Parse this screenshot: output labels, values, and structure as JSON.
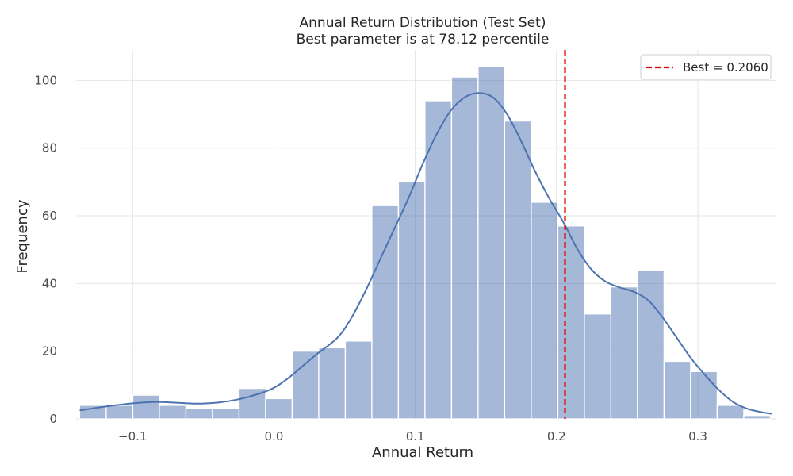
{
  "chart_data": {
    "type": "bar",
    "title": "Annual Return Distribution (Test Set)",
    "subtitle": "Best parameter is at 78.12 percentile",
    "xlabel": "Annual Return",
    "ylabel": "Frequency",
    "xlim": [
      -0.14,
      0.355
    ],
    "ylim": [
      0,
      109
    ],
    "x_ticks": [
      {
        "value": -0.1,
        "label": "−0.1"
      },
      {
        "value": 0.0,
        "label": "0.0"
      },
      {
        "value": 0.1,
        "label": "0.1"
      },
      {
        "value": 0.2,
        "label": "0.2"
      },
      {
        "value": 0.3,
        "label": "0.3"
      }
    ],
    "y_ticks": [
      {
        "value": 0,
        "label": "0"
      },
      {
        "value": 20,
        "label": "20"
      },
      {
        "value": 40,
        "label": "40"
      },
      {
        "value": 60,
        "label": "60"
      },
      {
        "value": 80,
        "label": "80"
      },
      {
        "value": 100,
        "label": "100"
      }
    ],
    "bin_start": -0.1375,
    "bin_width": 0.0188,
    "counts": [
      4,
      4,
      7,
      4,
      3,
      3,
      9,
      6,
      20,
      21,
      23,
      63,
      70,
      94,
      101,
      104,
      88,
      64,
      57,
      31,
      39,
      44,
      17,
      14,
      4,
      1
    ],
    "kde": [
      [
        -0.1375,
        2.5
      ],
      [
        -0.12,
        3.6
      ],
      [
        -0.1,
        4.6
      ],
      [
        -0.085,
        5.0
      ],
      [
        -0.07,
        4.8
      ],
      [
        -0.055,
        4.5
      ],
      [
        -0.04,
        4.8
      ],
      [
        -0.025,
        5.8
      ],
      [
        -0.01,
        7.5
      ],
      [
        0.0,
        9.2
      ],
      [
        0.01,
        12.0
      ],
      [
        0.02,
        15.5
      ],
      [
        0.03,
        19.0
      ],
      [
        0.045,
        24.0
      ],
      [
        0.055,
        30.0
      ],
      [
        0.065,
        38.0
      ],
      [
        0.075,
        47.0
      ],
      [
        0.085,
        56.0
      ],
      [
        0.095,
        65.0
      ],
      [
        0.105,
        75.0
      ],
      [
        0.115,
        84.0
      ],
      [
        0.125,
        91.0
      ],
      [
        0.135,
        95.0
      ],
      [
        0.145,
        96.3
      ],
      [
        0.155,
        95.0
      ],
      [
        0.165,
        90.0
      ],
      [
        0.175,
        82.0
      ],
      [
        0.185,
        73.0
      ],
      [
        0.195,
        65.0
      ],
      [
        0.205,
        58.0
      ],
      [
        0.215,
        50.0
      ],
      [
        0.225,
        44.0
      ],
      [
        0.235,
        40.5
      ],
      [
        0.245,
        38.8
      ],
      [
        0.255,
        37.5
      ],
      [
        0.265,
        35.0
      ],
      [
        0.275,
        30.0
      ],
      [
        0.285,
        24.0
      ],
      [
        0.295,
        18.0
      ],
      [
        0.305,
        13.0
      ],
      [
        0.315,
        8.5
      ],
      [
        0.325,
        5.0
      ],
      [
        0.335,
        3.0
      ],
      [
        0.345,
        2.0
      ],
      [
        0.3525,
        1.5
      ]
    ],
    "best_line": {
      "x": 0.206,
      "label": "Best = 0.2060",
      "color": "#dd0000"
    },
    "bar_color": "#4c72b0",
    "kde_color": "#4c72b0",
    "grid": true,
    "legend_position": "top-right"
  }
}
